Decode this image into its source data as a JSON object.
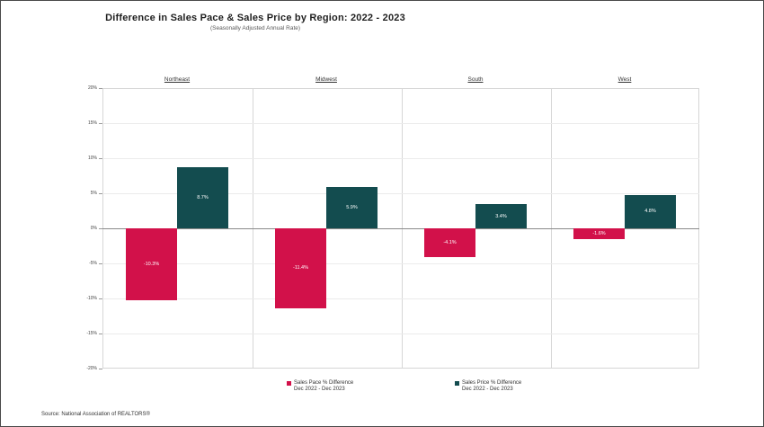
{
  "title": "Difference in Sales Pace & Sales Price by Region: 2022 - 2023",
  "subtitle": "(Seasonally Adjusted Annual Rate)",
  "source_note": "Source: National Association of REALTORS®",
  "colors": {
    "pace_red": "#d2114a",
    "price_teal": "#134c4f",
    "zero_line": "#8a8a8a",
    "gridline": "#ebebeb",
    "panel_border": "#d6d6d6"
  },
  "legend": [
    {
      "label": "Sales Pace % Difference",
      "sublabel": "Dec 2022 - Dec 2023",
      "color": "#d2114a"
    },
    {
      "label": "Sales Price % Difference",
      "sublabel": "Dec 2022 - Dec 2023",
      "color": "#134c4f"
    }
  ],
  "chart_data": {
    "type": "bar",
    "title": "Difference in Sales Pace & Sales Price by Region: 2022 - 2023",
    "subtitle": "(Seasonally Adjusted Annual Rate)",
    "xlabel": "",
    "ylabel": "",
    "categories": [
      "Northeast",
      "Midwest",
      "South",
      "West"
    ],
    "series": [
      {
        "name": "Sales Pace % Difference",
        "period": "Dec 2022 - Dec 2023",
        "color": "#d2114a",
        "values": [
          -10.3,
          -11.4,
          -4.1,
          -1.6
        ],
        "labels": [
          "-10.3%",
          "-11.4%",
          "-4.1%",
          "-1.6%"
        ]
      },
      {
        "name": "Sales Price % Difference",
        "period": "Dec 2022 - Dec 2023",
        "color": "#134c4f",
        "values": [
          8.7,
          5.9,
          3.4,
          4.8
        ],
        "labels": [
          "8.7%",
          "5.9%",
          "3.4%",
          "4.8%"
        ]
      }
    ],
    "ylim": [
      -20,
      20
    ],
    "ytick_step": 5,
    "ytick_labels": [
      "20%",
      "15%",
      "10%",
      "5%",
      "0%",
      "-5%",
      "-10%",
      "-15%",
      "-20%"
    ],
    "grid": true,
    "legend_position": "bottom"
  }
}
